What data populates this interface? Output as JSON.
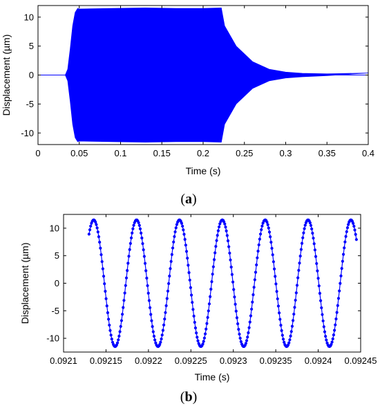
{
  "chart_data": [
    {
      "type": "line",
      "panel": "a",
      "caption_open": "(",
      "caption_letter": "a",
      "caption_close": ")",
      "xlabel": "Time (s)",
      "ylabel": "Displacement (µm)",
      "xlim": [
        0,
        0.4
      ],
      "ylim": [
        -12,
        12
      ],
      "xticks": [
        0,
        0.05,
        0.1,
        0.15,
        0.2,
        0.25,
        0.3,
        0.35,
        0.4
      ],
      "xtick_labels": [
        "0",
        "0.05",
        "0.1",
        "0.15",
        "0.2",
        "0.25",
        "0.3",
        "0.35",
        "0.4"
      ],
      "yticks": [
        -10,
        -5,
        0,
        5,
        10
      ],
      "ytick_labels": [
        "-10",
        "-5",
        "0",
        "5",
        "10"
      ],
      "grid": false,
      "color": "#0000ff",
      "series": [
        {
          "envelope_t": [
            0,
            0.033,
            0.036,
            0.039,
            0.042,
            0.045,
            0.048,
            0.05,
            0.09,
            0.13,
            0.17,
            0.2,
            0.222,
            0.226,
            0.24,
            0.26,
            0.28,
            0.3,
            0.32,
            0.35,
            0.4
          ],
          "envelope_upper": [
            0,
            0,
            1.0,
            4.5,
            8.5,
            10.8,
            11.5,
            11.4,
            11.5,
            11.6,
            11.5,
            11.5,
            11.6,
            8.5,
            5.0,
            2.3,
            1.0,
            0.5,
            0.3,
            0.2,
            0.35
          ],
          "envelope_lower": [
            0,
            0,
            -1.0,
            -4.5,
            -8.5,
            -10.8,
            -11.5,
            -11.4,
            -11.5,
            -11.6,
            -11.5,
            -11.5,
            -11.6,
            -8.5,
            -5.0,
            -2.3,
            -1.0,
            -0.5,
            -0.3,
            -0.1,
            0.35
          ]
        }
      ]
    },
    {
      "type": "scatter",
      "panel": "b",
      "caption_open": "(",
      "caption_letter": "b",
      "caption_close": ")",
      "xlabel": "Time (s)",
      "ylabel": "Displacement (µm)",
      "xlim": [
        0.0921,
        0.09245
      ],
      "ylim": [
        -12.5,
        12.5
      ],
      "xticks": [
        0.0921,
        0.09215,
        0.0922,
        0.09225,
        0.0923,
        0.09235,
        0.0924,
        0.09245
      ],
      "xtick_labels": [
        "0.0921",
        "0.09215",
        "0.0922",
        "0.09225",
        "0.0923",
        "0.09235",
        "0.0924",
        "0.09245"
      ],
      "yticks": [
        -10,
        -5,
        0,
        5,
        10
      ],
      "ytick_labels": [
        "-10",
        "-5",
        "0",
        "5",
        "10"
      ],
      "grid": false,
      "color": "#0000ff",
      "series": [
        {
          "t_start": 0.09213,
          "t_end": 0.092445,
          "amplitude": 11.5,
          "period": 5.05e-05,
          "first_peak_t": 0.0921355,
          "samples": 330
        }
      ]
    }
  ]
}
